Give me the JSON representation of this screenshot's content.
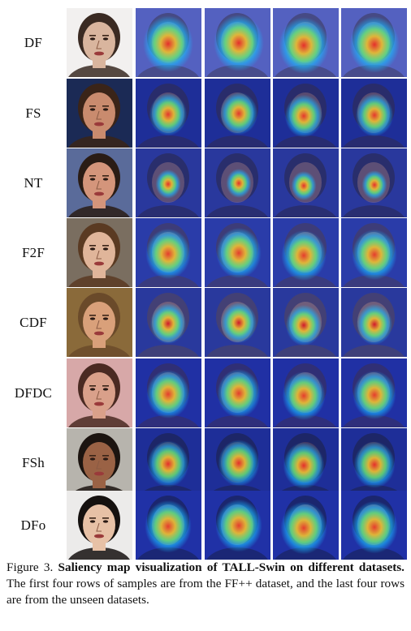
{
  "rows": [
    {
      "label": "DF",
      "bg": "#f2f0ef",
      "skin": "#d9b59e",
      "hair": "#3a2a22",
      "map_bg": "#5a63b8",
      "hot": "#ff2a10",
      "spread": 0.95
    },
    {
      "label": "FS",
      "bg": "#1b2a55",
      "skin": "#c98b6e",
      "hair": "#3a2418",
      "map_bg": "#1d2a8a",
      "hot": "#ff3312",
      "spread": 0.6
    },
    {
      "label": "NT",
      "bg": "#5a6b9a",
      "skin": "#d4957b",
      "hair": "#2a1c15",
      "map_bg": "#2a3590",
      "hot": "#ff2a10",
      "spread": 0.25
    },
    {
      "label": "F2F",
      "bg": "#7a6e60",
      "skin": "#e0b59a",
      "hair": "#5a3a22",
      "map_bg": "#2b3a9e",
      "hot": "#ff3a12",
      "spread": 0.8
    },
    {
      "label": "CDF",
      "bg": "#8a6a3a",
      "skin": "#d9a07a",
      "hair": "#6a4a2a",
      "map_bg": "#2a3690",
      "hot": "#e81010",
      "spread": 0.55
    },
    {
      "label": "DFDC",
      "bg": "#d7a8a8",
      "skin": "#d9a08a",
      "hair": "#4a2a22",
      "map_bg": "#1f2c98",
      "hot": "#ff3a12",
      "spread": 0.75
    },
    {
      "label": "FSh",
      "bg": "#b7b4ad",
      "skin": "#9a6245",
      "hair": "#1c1410",
      "map_bg": "#1d2a8a",
      "hot": "#ff2a10",
      "spread": 0.7
    },
    {
      "label": "DFo",
      "bg": "#ecebea",
      "skin": "#e7c1a6",
      "hair": "#15110f",
      "map_bg": "#1f2d9a",
      "hot": "#ff3a12",
      "spread": 0.85
    }
  ],
  "caption": {
    "prefix": "Figure 3. ",
    "bold": "Saliency map visualization of TALL-Swin on different datasets.",
    "rest": " The first four rows of samples are from the FF++ dataset, and the last four rows are from the unseen datasets."
  }
}
